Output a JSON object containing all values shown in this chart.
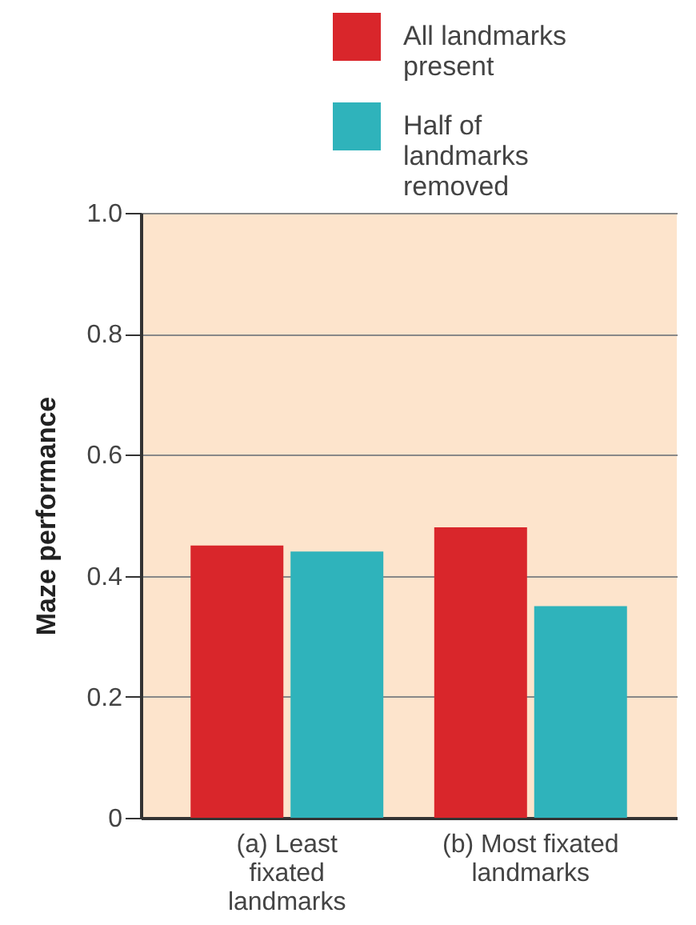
{
  "chart_data": {
    "type": "bar",
    "ylabel": "Maze performance",
    "categories": [
      "(a) Least fixated landmarks",
      "(b) Most fixated landmarks"
    ],
    "series": [
      {
        "name": "All landmarks present",
        "color": "#d9262b",
        "values": [
          0.45,
          0.48
        ]
      },
      {
        "name": "Half of landmarks removed",
        "color": "#2fb3bb",
        "values": [
          0.44,
          0.35
        ]
      }
    ],
    "ylim": [
      0,
      1
    ],
    "yticks": [
      0,
      0.2,
      0.4,
      0.6,
      0.8,
      {
        "value": 1,
        "label": "1.0"
      }
    ],
    "grid": "y",
    "legend": "top right"
  }
}
